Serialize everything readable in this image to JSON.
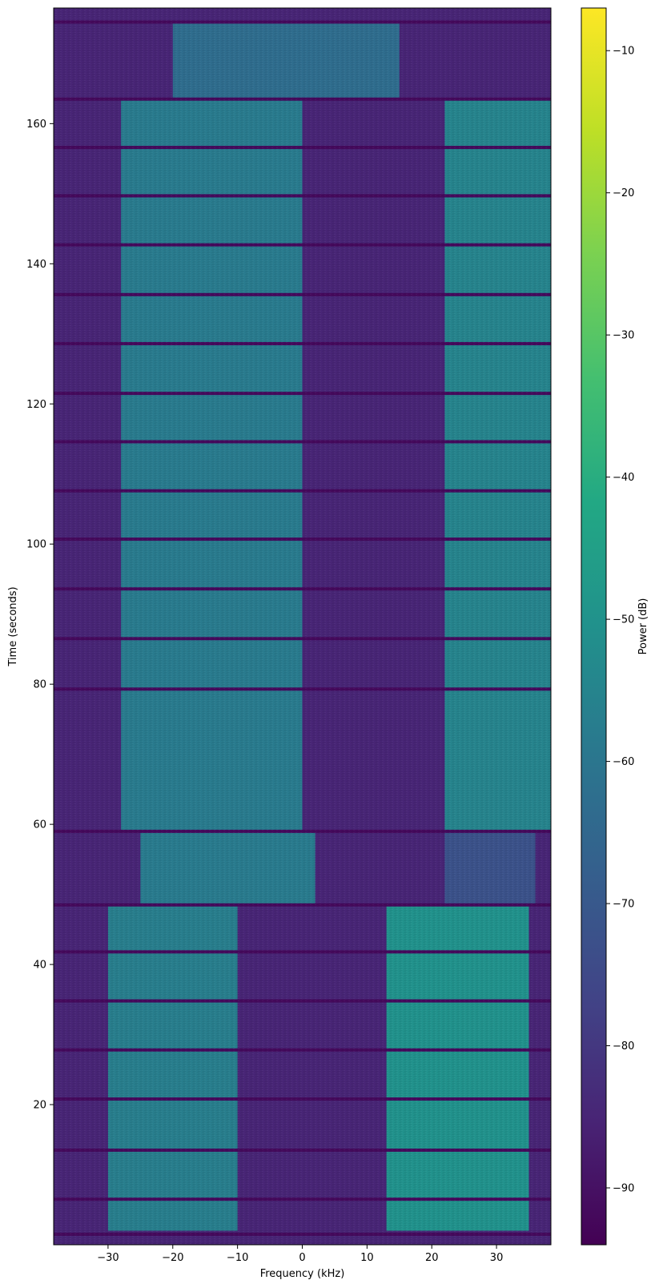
{
  "chart_data": {
    "type": "heatmap",
    "title": "",
    "xlabel": "Frequency (kHz)",
    "ylabel": "Time (seconds)",
    "colorbar_label": "Power (dB)",
    "colormap": "viridis",
    "xlim": [
      -38.4,
      38.4
    ],
    "ylim": [
      0,
      176.5
    ],
    "clim": [
      -94,
      -7
    ],
    "x_ticks": [
      -30,
      -20,
      -10,
      0,
      10,
      20,
      30
    ],
    "x_tick_labels": [
      "−30",
      "−20",
      "−10",
      "0",
      "10",
      "20",
      "30"
    ],
    "y_ticks": [
      20,
      40,
      60,
      80,
      100,
      120,
      140,
      160
    ],
    "y_tick_labels": [
      "20",
      "40",
      "60",
      "80",
      "100",
      "120",
      "140",
      "160"
    ],
    "colorbar_ticks": [
      -90,
      -80,
      -70,
      -60,
      -50,
      -40,
      -30,
      -20,
      -10
    ],
    "colorbar_tick_labels": [
      "−90",
      "−80",
      "−70",
      "−60",
      "−50",
      "−40",
      "−30",
      "−20",
      "−10"
    ],
    "noise_floor_db": -85,
    "signal_bands": [
      {
        "t_start": 2.0,
        "t_end": 48.5,
        "f_low": -30.0,
        "f_high": -10.0,
        "power_db": -57
      },
      {
        "t_start": 2.0,
        "t_end": 48.5,
        "f_low": 13.0,
        "f_high": 35.0,
        "power_db": -50
      },
      {
        "t_start": 48.5,
        "t_end": 59.0,
        "f_low": -25.0,
        "f_high": 2.0,
        "power_db": -58
      },
      {
        "t_start": 48.5,
        "t_end": 59.0,
        "f_low": 22.0,
        "f_high": 36.0,
        "power_db": -72
      },
      {
        "t_start": 59.0,
        "t_end": 163.5,
        "f_low": -28.0,
        "f_high": 0.0,
        "power_db": -58
      },
      {
        "t_start": 59.0,
        "t_end": 163.5,
        "f_low": 22.0,
        "f_high": 38.4,
        "power_db": -55
      },
      {
        "t_start": 163.5,
        "t_end": 174.5,
        "f_low": -20.0,
        "f_high": 15.0,
        "power_db": -63
      }
    ],
    "dropout_rows_s": [
      1.5,
      6.5,
      13.5,
      20.8,
      27.8,
      34.8,
      41.8,
      48.5,
      59.0,
      79.3,
      86.5,
      93.6,
      100.7,
      107.6,
      114.6,
      121.5,
      128.6,
      135.6,
      142.7,
      149.7,
      156.6,
      163.5,
      174.5
    ]
  }
}
